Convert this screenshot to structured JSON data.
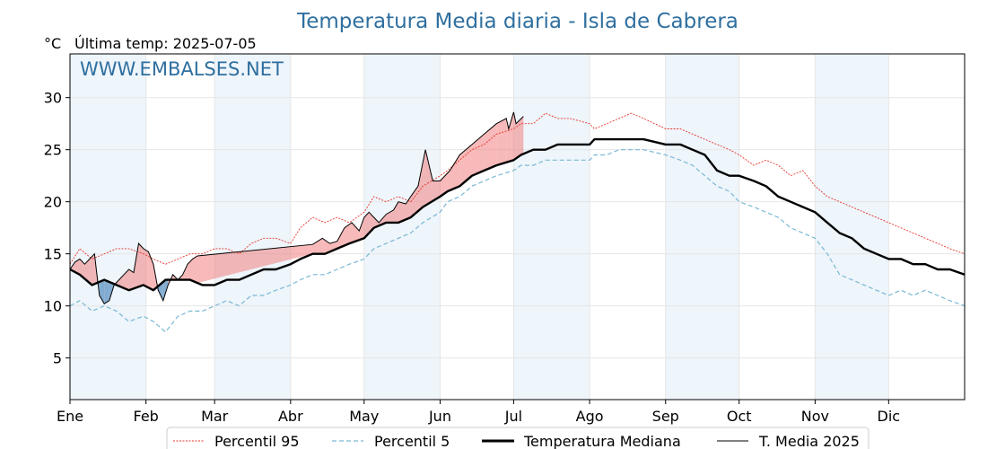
{
  "chart_data": {
    "type": "line",
    "title": "Temperatura Media diaria - Isla de Cabrera",
    "unit_label": "°C",
    "last_temp_label": "Última temp: 2025-07-05",
    "watermark": "WWW.EMBALSES.NET",
    "ylim": [
      1,
      34.2
    ],
    "yticks": [
      5,
      10,
      15,
      20,
      25,
      30
    ],
    "xlim_day": [
      1,
      366
    ],
    "months": [
      {
        "label": "Ene",
        "day": 1
      },
      {
        "label": "Feb",
        "day": 32
      },
      {
        "label": "Mar",
        "day": 60
      },
      {
        "label": "Abr",
        "day": 91
      },
      {
        "label": "May",
        "day": 121
      },
      {
        "label": "Jun",
        "day": 152
      },
      {
        "label": "Jul",
        "day": 182
      },
      {
        "label": "Ago",
        "day": 213
      },
      {
        "label": "Sep",
        "day": 244
      },
      {
        "label": "Oct",
        "day": 274
      },
      {
        "label": "Nov",
        "day": 305
      },
      {
        "label": "Dic",
        "day": 335
      }
    ],
    "grid": true,
    "legend_position": "bottom-center",
    "colors": {
      "p95": "#e8332a",
      "p5": "#7ab8d4",
      "median": "#000000",
      "year": "#000000",
      "above": "#f08080",
      "below": "#6d9ec8",
      "band": "#eef5fb"
    },
    "series": [
      {
        "name": "Percentil 95",
        "key": "p95",
        "x": [
          1,
          5,
          10,
          15,
          20,
          25,
          31,
          35,
          40,
          45,
          50,
          55,
          60,
          65,
          70,
          75,
          80,
          85,
          91,
          95,
          100,
          105,
          110,
          115,
          121,
          125,
          130,
          135,
          140,
          145,
          152,
          155,
          160,
          165,
          170,
          175,
          182,
          185,
          190,
          195,
          200,
          205,
          213,
          215,
          220,
          225,
          230,
          235,
          244,
          250,
          255,
          260,
          265,
          270,
          274,
          280,
          285,
          290,
          295,
          300,
          305,
          310,
          315,
          320,
          325,
          330,
          335,
          340,
          345,
          350,
          355,
          360,
          366
        ],
        "values": [
          14.0,
          15.5,
          14.5,
          15.0,
          15.5,
          15.5,
          15.0,
          14.5,
          14.0,
          14.5,
          15.0,
          15.0,
          15.5,
          15.5,
          15.0,
          16.0,
          16.5,
          16.5,
          16.0,
          17.5,
          18.5,
          18.0,
          18.5,
          18.0,
          19.0,
          20.5,
          20.0,
          20.5,
          20.0,
          21.5,
          22.5,
          23.0,
          24.0,
          25.0,
          25.5,
          26.5,
          27.0,
          27.5,
          27.5,
          28.5,
          28.0,
          28.0,
          27.5,
          27.0,
          27.5,
          28.0,
          28.5,
          28.0,
          27.0,
          27.0,
          26.5,
          26.0,
          25.5,
          25.0,
          24.5,
          23.5,
          24.0,
          23.5,
          22.5,
          23.0,
          21.5,
          20.5,
          20.0,
          19.5,
          19.0,
          18.5,
          18.0,
          17.5,
          17.0,
          16.5,
          16.0,
          15.5,
          15.0
        ]
      },
      {
        "name": "Percentil 5",
        "key": "p5",
        "x": [
          1,
          5,
          10,
          15,
          20,
          25,
          31,
          35,
          40,
          45,
          50,
          55,
          60,
          65,
          70,
          75,
          80,
          85,
          91,
          95,
          100,
          105,
          110,
          115,
          121,
          125,
          130,
          135,
          140,
          145,
          152,
          155,
          160,
          165,
          170,
          175,
          182,
          185,
          190,
          195,
          200,
          205,
          213,
          215,
          220,
          225,
          230,
          235,
          244,
          250,
          255,
          260,
          265,
          270,
          274,
          280,
          285,
          290,
          295,
          300,
          305,
          310,
          315,
          320,
          325,
          330,
          335,
          340,
          345,
          350,
          355,
          360,
          366
        ],
        "values": [
          10.0,
          10.5,
          9.5,
          10.0,
          9.5,
          8.5,
          9.0,
          8.5,
          7.5,
          9.0,
          9.5,
          9.5,
          10.0,
          10.5,
          10.0,
          11.0,
          11.0,
          11.5,
          12.0,
          12.5,
          13.0,
          13.0,
          13.5,
          14.0,
          14.5,
          15.5,
          16.0,
          16.5,
          17.0,
          18.0,
          19.0,
          20.0,
          20.5,
          21.5,
          22.0,
          22.5,
          23.0,
          23.5,
          23.5,
          24.0,
          24.0,
          24.0,
          24.0,
          24.5,
          24.5,
          25.0,
          25.0,
          25.0,
          24.5,
          24.0,
          23.5,
          22.5,
          21.5,
          21.0,
          20.0,
          19.5,
          19.0,
          18.5,
          17.5,
          17.0,
          16.5,
          15.0,
          13.0,
          12.5,
          12.0,
          11.5,
          11.0,
          11.5,
          11.0,
          11.5,
          11.0,
          10.5,
          10.0
        ]
      },
      {
        "name": "Temperatura Mediana",
        "key": "median",
        "x": [
          1,
          5,
          10,
          15,
          20,
          25,
          31,
          35,
          40,
          45,
          50,
          55,
          60,
          65,
          70,
          75,
          80,
          85,
          91,
          95,
          100,
          105,
          110,
          115,
          121,
          125,
          130,
          135,
          140,
          145,
          152,
          155,
          160,
          165,
          170,
          175,
          182,
          185,
          190,
          195,
          200,
          205,
          213,
          215,
          220,
          225,
          230,
          235,
          244,
          250,
          255,
          260,
          265,
          270,
          274,
          280,
          285,
          290,
          295,
          300,
          305,
          310,
          315,
          320,
          325,
          330,
          335,
          340,
          345,
          350,
          355,
          360,
          366
        ],
        "values": [
          13.5,
          13.0,
          12.0,
          12.5,
          12.0,
          11.5,
          12.0,
          11.5,
          12.5,
          12.5,
          12.5,
          12.0,
          12.0,
          12.5,
          12.5,
          13.0,
          13.5,
          13.5,
          14.0,
          14.5,
          15.0,
          15.0,
          15.5,
          16.0,
          16.5,
          17.5,
          18.0,
          18.0,
          18.5,
          19.5,
          20.5,
          21.0,
          21.5,
          22.5,
          23.0,
          23.5,
          24.0,
          24.5,
          25.0,
          25.0,
          25.5,
          25.5,
          25.5,
          26.0,
          26.0,
          26.0,
          26.0,
          26.0,
          25.5,
          25.5,
          25.0,
          24.5,
          23.0,
          22.5,
          22.5,
          22.0,
          21.5,
          20.5,
          20.0,
          19.5,
          19.0,
          18.0,
          17.0,
          16.5,
          15.5,
          15.0,
          14.5,
          14.5,
          14.0,
          14.0,
          13.5,
          13.5,
          13.0
        ]
      },
      {
        "name": "T. Media 2025",
        "key": "year",
        "x": [
          1,
          3,
          5,
          7,
          9,
          11,
          12,
          13,
          15,
          17,
          19,
          21,
          23,
          25,
          27,
          29,
          31,
          33,
          35,
          37,
          39,
          41,
          43,
          45,
          47,
          49,
          51,
          53,
          100,
          104,
          107,
          110,
          113,
          116,
          119,
          121,
          123,
          125,
          127,
          130,
          133,
          135,
          138,
          140,
          143,
          146,
          149,
          152,
          156,
          160,
          165,
          170,
          175,
          179,
          180,
          182,
          183,
          186
        ],
        "values": [
          13.5,
          14.2,
          14.5,
          14.0,
          14.5,
          15.0,
          13.0,
          11.0,
          10.2,
          10.5,
          12.0,
          12.5,
          13.0,
          13.5,
          13.2,
          16.0,
          15.5,
          15.2,
          14.0,
          11.5,
          10.5,
          12.0,
          13.0,
          12.5,
          13.0,
          14.0,
          14.5,
          14.8,
          15.9,
          16.5,
          16.0,
          16.2,
          17.5,
          18.0,
          17.2,
          18.5,
          19.0,
          18.5,
          18.0,
          18.8,
          19.2,
          20.0,
          19.8,
          20.5,
          21.5,
          25.0,
          22.0,
          22.0,
          23.0,
          24.5,
          25.5,
          26.5,
          27.5,
          28.0,
          27.0,
          28.6,
          27.5,
          28.2
        ]
      }
    ]
  }
}
